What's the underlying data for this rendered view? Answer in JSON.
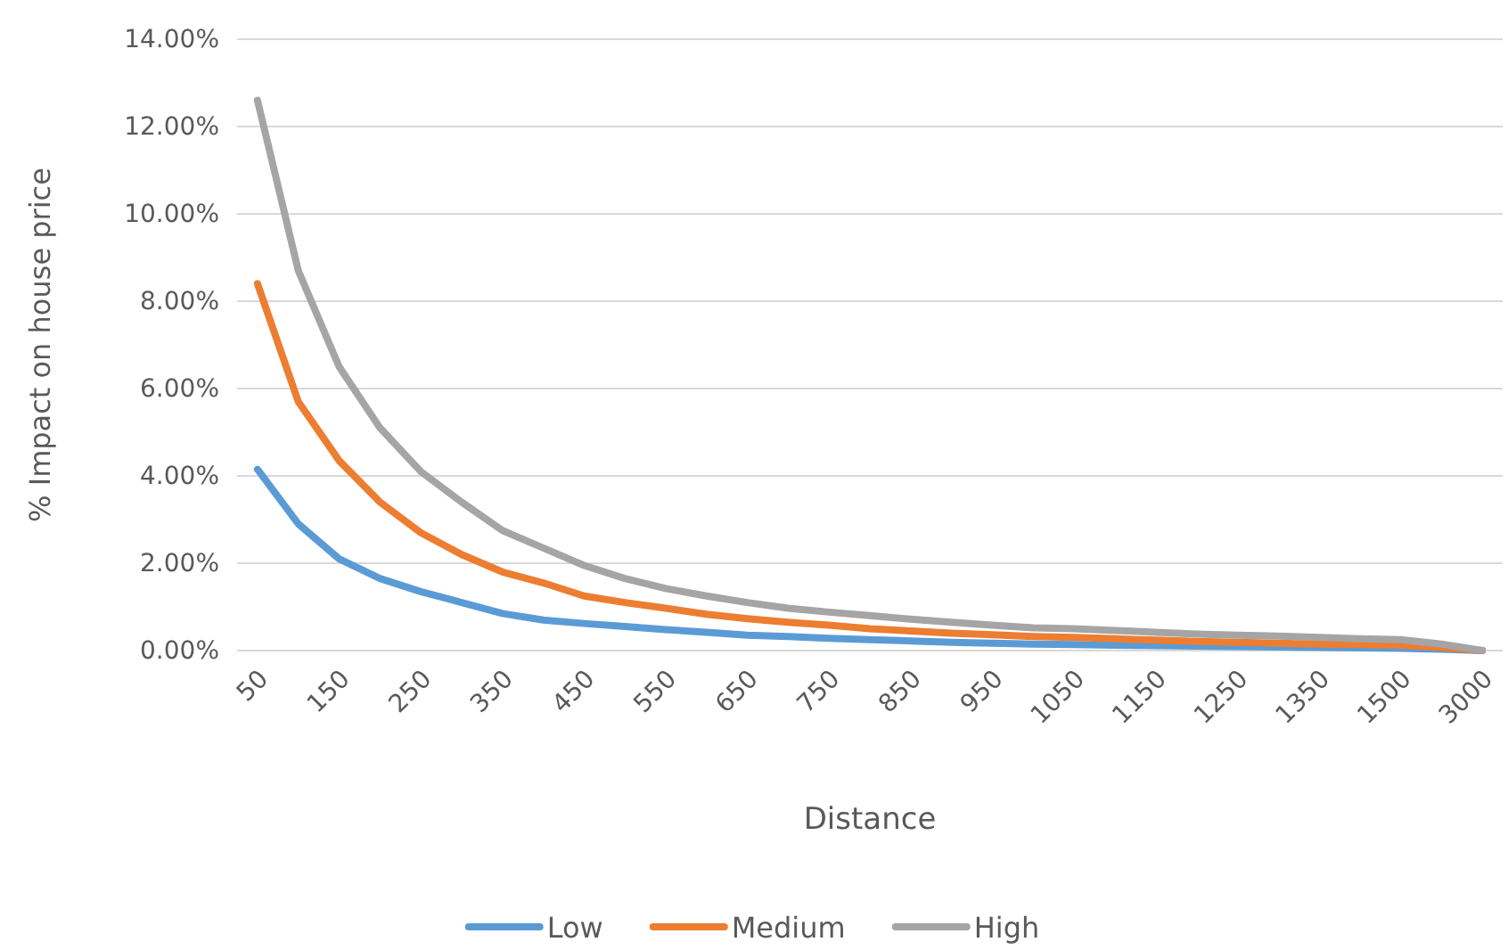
{
  "chart_data": {
    "type": "line",
    "xlabel": "Distance",
    "ylabel": "% Impact on house price",
    "categories": [
      "50",
      null,
      "150",
      null,
      "250",
      null,
      "350",
      null,
      "450",
      null,
      "550",
      null,
      "650",
      null,
      "750",
      null,
      "850",
      null,
      "950",
      null,
      "1050",
      null,
      "1150",
      null,
      "1250",
      null,
      "1350",
      null,
      "1500",
      null,
      "3000"
    ],
    "series": [
      {
        "name": "Low",
        "color": "#5b9bd5",
        "values": [
          4.15,
          2.9,
          2.1,
          1.65,
          1.35,
          1.1,
          0.85,
          0.7,
          0.62,
          0.55,
          0.48,
          0.42,
          0.35,
          0.32,
          0.28,
          0.25,
          0.22,
          0.19,
          0.17,
          0.15,
          0.14,
          0.12,
          0.11,
          0.1,
          0.09,
          0.08,
          0.07,
          0.06,
          0.05,
          0.03,
          0
        ]
      },
      {
        "name": "Medium",
        "color": "#ed7d31",
        "values": [
          8.4,
          5.7,
          4.35,
          3.4,
          2.7,
          2.2,
          1.8,
          1.55,
          1.25,
          1.1,
          0.97,
          0.83,
          0.73,
          0.65,
          0.58,
          0.5,
          0.45,
          0.4,
          0.36,
          0.32,
          0.3,
          0.27,
          0.24,
          0.21,
          0.19,
          0.17,
          0.15,
          0.14,
          0.12,
          0.07,
          0
        ]
      },
      {
        "name": "High",
        "color": "#a5a5a5",
        "values": [
          12.6,
          8.7,
          6.5,
          5.1,
          4.1,
          3.4,
          2.75,
          2.35,
          1.95,
          1.65,
          1.42,
          1.25,
          1.1,
          0.97,
          0.88,
          0.8,
          0.72,
          0.65,
          0.58,
          0.52,
          0.5,
          0.46,
          0.42,
          0.38,
          0.35,
          0.33,
          0.3,
          0.27,
          0.25,
          0.15,
          0
        ]
      }
    ],
    "ylim": [
      0,
      14
    ],
    "yticks": [
      {
        "value": 0,
        "label": "0.00%"
      },
      {
        "value": 2,
        "label": "2.00%"
      },
      {
        "value": 4,
        "label": "4.00%"
      },
      {
        "value": 6,
        "label": "6.00%"
      },
      {
        "value": 8,
        "label": "8.00%"
      },
      {
        "value": 10,
        "label": "10.00%"
      },
      {
        "value": 12,
        "label": "12.00%"
      },
      {
        "value": 14,
        "label": "14.00%"
      }
    ],
    "grid": "y",
    "legend": "bottom",
    "marker": "none",
    "line_style": "solid"
  }
}
